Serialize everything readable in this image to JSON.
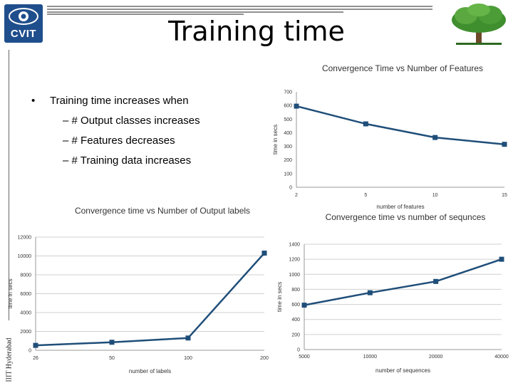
{
  "title": "Training time",
  "logo": {
    "text": "CVIT",
    "icon": "eye-logo-icon"
  },
  "side_text": "IIIT Hyderabad",
  "tree_icon": "tree-logo-icon",
  "colors": {
    "series": "#1f4e79",
    "grid": "#d0d0d0",
    "text": "#333333"
  },
  "bullets": {
    "main": "Training time increases when",
    "subs": [
      "# Output classes increases",
      "# Features decreases",
      "# Training data increases"
    ]
  },
  "chart_data": [
    {
      "id": "features",
      "type": "line",
      "title": "Convergence Time vs Number of Features",
      "xlabel": "number of features",
      "ylabel": "time in secs",
      "categories": [
        "2",
        "5",
        "10",
        "15"
      ],
      "y_ticks": [
        "0",
        "100",
        "200",
        "300",
        "400",
        "500",
        "600",
        "700"
      ],
      "ylim": [
        0,
        700
      ],
      "grid": false,
      "series": [
        {
          "values": [
            595,
            465,
            365,
            315
          ]
        }
      ]
    },
    {
      "id": "labels",
      "type": "line",
      "title": "Convergence time vs Number of Output labels",
      "xlabel": "number of labels",
      "ylabel": "time in secs",
      "categories": [
        "26",
        "50",
        "100",
        "200"
      ],
      "y_ticks": [
        "0",
        "2000",
        "4000",
        "6000",
        "8000",
        "10000",
        "12000"
      ],
      "ylim": [
        0,
        12000
      ],
      "grid": true,
      "series": [
        {
          "values": [
            520,
            850,
            1300,
            10300
          ]
        }
      ]
    },
    {
      "id": "sequences",
      "type": "line",
      "title": "Convergence time vs number of sequnces",
      "xlabel": "number of sequences",
      "ylabel": "time in secs",
      "categories": [
        "5000",
        "10000",
        "20000",
        "40000"
      ],
      "y_ticks": [
        "0",
        "200",
        "400",
        "600",
        "800",
        "1000",
        "1200",
        "1400"
      ],
      "ylim": [
        0,
        1400
      ],
      "grid": true,
      "series": [
        {
          "values": [
            590,
            755,
            905,
            1200
          ]
        }
      ]
    }
  ]
}
